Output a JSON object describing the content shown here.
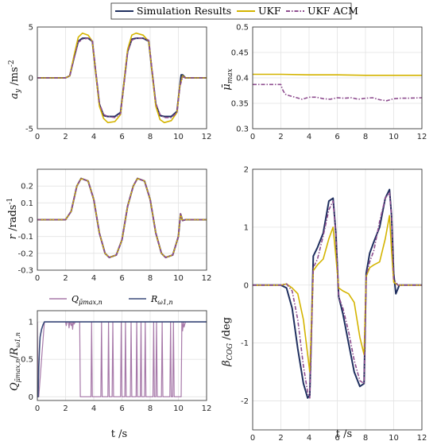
{
  "colors": {
    "sim": "#1f2f5f",
    "ukf": "#d4b400",
    "acm": "#8e4d8f",
    "q": "#a779a9",
    "r": "#3a4a7a",
    "grid": "#e3e3e3",
    "axis": "#262626"
  },
  "legend_top": [
    "Simulation Results",
    "UKF",
    "UKF ACM"
  ],
  "legend_bottom": [
    "Q_{μ̄max,n}",
    "R_{ω₁,n}"
  ],
  "chart_data": [
    {
      "type": "line",
      "id": "ay",
      "ylabel": "a_y /ms⁻²",
      "xlabel": "",
      "xlim": [
        0,
        12
      ],
      "ylim": [
        -5,
        5
      ],
      "xticks": [
        "0",
        "2",
        "4",
        "6",
        "8",
        "10",
        "12"
      ],
      "yticks": [
        "5",
        "0",
        "-5"
      ],
      "grid": true,
      "series": [
        {
          "name": "Simulation Results",
          "x": [
            0,
            2,
            2.3,
            2.6,
            2.9,
            3.2,
            3.6,
            3.9,
            4.1,
            4.4,
            4.7,
            5.0,
            5.5,
            5.9,
            6.1,
            6.4,
            6.7,
            7.0,
            7.5,
            7.9,
            8.1,
            8.4,
            8.7,
            9.0,
            9.5,
            9.9,
            10.1,
            10.2,
            10.3,
            10.5,
            12
          ],
          "y": [
            0,
            0,
            0.2,
            2.0,
            3.6,
            3.9,
            3.9,
            3.6,
            1.0,
            -2.6,
            -3.7,
            -3.8,
            -3.8,
            -3.4,
            -1.0,
            2.6,
            3.8,
            3.9,
            3.9,
            3.6,
            1.0,
            -2.6,
            -3.7,
            -3.8,
            -3.8,
            -3.3,
            -0.8,
            0.3,
            0.3,
            0,
            0
          ]
        },
        {
          "name": "UKF",
          "x": [
            0,
            2,
            2.3,
            2.6,
            2.9,
            3.2,
            3.6,
            3.9,
            4.1,
            4.4,
            4.7,
            5.0,
            5.5,
            5.9,
            6.1,
            6.4,
            6.7,
            7.0,
            7.5,
            7.9,
            8.1,
            8.4,
            8.7,
            9.0,
            9.5,
            9.9,
            10.1,
            10.3,
            10.5,
            12
          ],
          "y": [
            0,
            0,
            0.2,
            2.2,
            4.0,
            4.4,
            4.2,
            3.6,
            1.0,
            -2.8,
            -4.0,
            -4.4,
            -4.3,
            -3.6,
            -1.0,
            2.8,
            4.2,
            4.4,
            4.2,
            3.6,
            1.0,
            -2.8,
            -4.1,
            -4.4,
            -4.2,
            -3.4,
            -0.8,
            0.2,
            0,
            0
          ]
        },
        {
          "name": "UKF ACM",
          "x": [
            0,
            2,
            2.3,
            2.6,
            2.9,
            3.2,
            3.6,
            3.9,
            4.1,
            4.4,
            4.7,
            5.0,
            5.5,
            5.9,
            6.1,
            6.4,
            6.7,
            7.0,
            7.5,
            7.9,
            8.1,
            8.4,
            8.7,
            9.0,
            9.5,
            9.9,
            10.1,
            10.3,
            10.5,
            12
          ],
          "y": [
            0,
            0,
            0.2,
            1.9,
            3.5,
            3.8,
            3.9,
            3.7,
            1.2,
            -2.5,
            -3.6,
            -3.8,
            -3.9,
            -3.5,
            -1.2,
            2.5,
            3.7,
            3.9,
            3.9,
            3.7,
            1.2,
            -2.5,
            -3.6,
            -3.9,
            -3.9,
            -3.4,
            -0.9,
            0.1,
            0,
            0
          ]
        }
      ]
    },
    {
      "type": "line",
      "id": "mu",
      "ylabel": "μ̄_max",
      "xlabel": "",
      "xlim": [
        0,
        12
      ],
      "ylim": [
        0.3,
        0.5
      ],
      "xticks": [
        "0",
        "2",
        "4",
        "6",
        "8",
        "10",
        "12"
      ],
      "yticks": [
        "0.5",
        "0.45",
        "0.4",
        "0.35",
        "0.3"
      ],
      "grid": true,
      "series": [
        {
          "name": "UKF",
          "x": [
            0,
            2,
            4,
            6,
            8,
            9,
            10,
            12
          ],
          "y": [
            0.407,
            0.407,
            0.406,
            0.406,
            0.405,
            0.405,
            0.405,
            0.405
          ]
        },
        {
          "name": "UKF ACM",
          "x": [
            0,
            2,
            2.1,
            2.3,
            2.6,
            3.0,
            3.5,
            4.0,
            4.5,
            5.0,
            5.5,
            6.0,
            6.5,
            7.0,
            7.5,
            8.0,
            8.5,
            9.0,
            9.5,
            10.0,
            10.5,
            11.0,
            12
          ],
          "y": [
            0.387,
            0.387,
            0.378,
            0.368,
            0.365,
            0.362,
            0.358,
            0.362,
            0.362,
            0.359,
            0.358,
            0.361,
            0.36,
            0.361,
            0.358,
            0.36,
            0.361,
            0.357,
            0.355,
            0.359,
            0.36,
            0.36,
            0.361
          ]
        }
      ]
    },
    {
      "type": "line",
      "id": "r",
      "ylabel": "r /rads⁻¹",
      "xlabel": "",
      "xlim": [
        0,
        12
      ],
      "ylim": [
        -0.3,
        0.3
      ],
      "xticks": [
        "0",
        "2",
        "4",
        "6",
        "8",
        "10",
        "12"
      ],
      "yticks": [
        "0.2",
        "0.1",
        "0",
        "-0.1",
        "-0.2",
        "-0.3"
      ],
      "grid": true,
      "series": [
        {
          "name": "Simulation Results",
          "x": [
            0,
            2,
            2.4,
            2.8,
            3.1,
            3.6,
            4.0,
            4.4,
            4.8,
            5.1,
            5.6,
            6.0,
            6.4,
            6.8,
            7.1,
            7.6,
            8.0,
            8.4,
            8.8,
            9.1,
            9.6,
            10.0,
            10.15,
            10.3,
            10.5,
            12
          ],
          "y": [
            0,
            0,
            0.05,
            0.2,
            0.245,
            0.23,
            0.12,
            -0.08,
            -0.2,
            -0.225,
            -0.21,
            -0.12,
            0.08,
            0.2,
            0.245,
            0.23,
            0.12,
            -0.08,
            -0.2,
            -0.225,
            -0.21,
            -0.1,
            0.035,
            -0.005,
            0,
            0
          ]
        },
        {
          "name": "UKF",
          "x": [
            0,
            2,
            2.4,
            2.8,
            3.1,
            3.6,
            4.0,
            4.4,
            4.8,
            5.1,
            5.6,
            6.0,
            6.4,
            6.8,
            7.1,
            7.6,
            8.0,
            8.4,
            8.8,
            9.1,
            9.6,
            10.0,
            10.15,
            10.3,
            10.5,
            12
          ],
          "y": [
            0,
            0,
            0.05,
            0.2,
            0.245,
            0.23,
            0.12,
            -0.08,
            -0.2,
            -0.225,
            -0.21,
            -0.12,
            0.08,
            0.2,
            0.245,
            0.23,
            0.12,
            -0.08,
            -0.2,
            -0.225,
            -0.21,
            -0.1,
            0.035,
            -0.005,
            0,
            0
          ]
        },
        {
          "name": "UKF ACM",
          "x": [
            0,
            2,
            2.4,
            2.8,
            3.1,
            3.6,
            4.0,
            4.4,
            4.8,
            5.1,
            5.6,
            6.0,
            6.4,
            6.8,
            7.1,
            7.6,
            8.0,
            8.4,
            8.8,
            9.1,
            9.6,
            10.0,
            10.15,
            10.3,
            10.5,
            12
          ],
          "y": [
            0,
            0,
            0.05,
            0.2,
            0.245,
            0.23,
            0.12,
            -0.08,
            -0.2,
            -0.225,
            -0.21,
            -0.12,
            0.08,
            0.2,
            0.245,
            0.23,
            0.12,
            -0.08,
            -0.2,
            -0.225,
            -0.21,
            -0.1,
            0.035,
            -0.005,
            0,
            0
          ]
        }
      ]
    },
    {
      "type": "line",
      "id": "beta",
      "ylabel": "β_COG /deg",
      "xlabel": "t /s",
      "xlim": [
        0,
        12
      ],
      "ylim": [
        -2.5,
        2
      ],
      "xticks": [
        "0",
        "2",
        "4",
        "6",
        "8",
        "10",
        "12"
      ],
      "yticks": [
        "2",
        "1",
        "0",
        "-1",
        "-2"
      ],
      "grid": true,
      "series": [
        {
          "name": "Simulation Results",
          "x": [
            0,
            2,
            2.4,
            2.8,
            3.2,
            3.6,
            3.9,
            4.05,
            4.3,
            4.6,
            5.0,
            5.4,
            5.7,
            5.9,
            6.1,
            6.4,
            6.8,
            7.2,
            7.6,
            7.9,
            8.05,
            8.3,
            8.6,
            9.0,
            9.4,
            9.7,
            9.85,
            10.0,
            10.15,
            10.4,
            12
          ],
          "y": [
            0,
            0,
            -0.05,
            -0.4,
            -1.1,
            -1.7,
            -1.95,
            -1.9,
            0.5,
            0.65,
            0.9,
            1.45,
            1.5,
            0.9,
            -0.2,
            -0.5,
            -1.0,
            -1.5,
            -1.75,
            -1.7,
            0.2,
            0.55,
            0.75,
            1.0,
            1.5,
            1.65,
            1.2,
            0.2,
            -0.15,
            0,
            0
          ]
        },
        {
          "name": "UKF",
          "x": [
            0,
            2,
            2.4,
            2.8,
            3.2,
            3.6,
            3.9,
            4.05,
            4.3,
            4.6,
            5.0,
            5.4,
            5.7,
            5.9,
            6.1,
            6.4,
            6.8,
            7.2,
            7.6,
            7.9,
            8.05,
            8.3,
            8.6,
            9.0,
            9.4,
            9.7,
            9.85,
            10.0,
            10.3,
            12
          ],
          "y": [
            0,
            0,
            0.02,
            -0.05,
            -0.15,
            -0.6,
            -1.2,
            -1.5,
            0.25,
            0.35,
            0.45,
            0.8,
            1.0,
            0.5,
            -0.05,
            -0.1,
            -0.15,
            -0.3,
            -0.9,
            -1.2,
            0.15,
            0.3,
            0.35,
            0.4,
            0.8,
            1.2,
            0.6,
            0.05,
            0,
            0
          ]
        },
        {
          "name": "UKF ACM",
          "x": [
            0,
            2,
            2.4,
            2.8,
            3.2,
            3.6,
            3.9,
            4.05,
            4.3,
            4.6,
            5.0,
            5.4,
            5.7,
            5.9,
            6.1,
            6.4,
            6.8,
            7.2,
            7.6,
            7.9,
            8.05,
            8.3,
            8.6,
            9.0,
            9.4,
            9.7,
            9.85,
            10.0,
            10.3,
            12
          ],
          "y": [
            0,
            0,
            0.02,
            -0.1,
            -0.6,
            -1.4,
            -1.85,
            -1.95,
            0.3,
            0.45,
            0.85,
            1.3,
            1.45,
            0.9,
            -0.2,
            -0.4,
            -0.8,
            -1.3,
            -1.65,
            -1.7,
            0.15,
            0.4,
            0.6,
            1.1,
            1.5,
            1.6,
            1.2,
            0.1,
            0,
            0
          ]
        }
      ]
    },
    {
      "type": "line",
      "id": "qr",
      "ylabel": "Q_{μ̄max,n}/R_{ω₁,n}",
      "xlabel": "t /s",
      "xlim": [
        0,
        12
      ],
      "ylim": [
        -0.05,
        1.15
      ],
      "xticks": [
        "0",
        "2",
        "4",
        "6",
        "8",
        "10",
        "12"
      ],
      "yticks": [
        "1",
        "0.5",
        "0"
      ],
      "grid": true,
      "series": [
        {
          "name": "Q_{μ̄max,n}",
          "x": [
            0,
            0.05,
            0.1,
            0.3,
            0.5,
            2,
            2.05,
            2.1,
            2.2,
            2.25,
            2.3,
            2.4,
            2.45,
            2.5,
            2.55,
            2.6,
            2.7,
            3.0,
            3.05,
            3.1,
            3.8,
            3.85,
            3.9,
            4.5,
            4.55,
            4.6,
            5.0,
            5.05,
            5.1,
            5.3,
            5.35,
            5.4,
            5.9,
            5.95,
            6.0,
            6.2,
            6.25,
            6.3,
            6.6,
            6.65,
            6.7,
            7.0,
            7.05,
            7.1,
            7.3,
            7.35,
            7.4,
            7.6,
            7.65,
            7.7,
            8.2,
            8.25,
            8.3,
            8.4,
            8.45,
            8.5,
            8.8,
            8.85,
            8.9,
            9.4,
            9.45,
            9.5,
            9.6,
            9.65,
            9.7,
            10.2,
            10.25,
            10.3,
            10.35,
            10.4,
            10.5,
            12
          ],
          "y": [
            1,
            0.05,
            0,
            0.5,
            1,
            1,
            0.95,
            1,
            1,
            0.92,
            1,
            0.95,
            1,
            0.9,
            1,
            0.97,
            1,
            1,
            0,
            0,
            0,
            1,
            0,
            0,
            1,
            0,
            0,
            1,
            0,
            0,
            1,
            0,
            0,
            1,
            0,
            0,
            1,
            0,
            0,
            1,
            0,
            0,
            1,
            0,
            0,
            1,
            0,
            0,
            1,
            0,
            0,
            1,
            0,
            0,
            1,
            0,
            0,
            1,
            0,
            0,
            1,
            0,
            0,
            1,
            0,
            0,
            1,
            0.88,
            1,
            0.93,
            1,
            1
          ]
        },
        {
          "name": "R_{ω₁,n}",
          "x": [
            0,
            0.05,
            0.1,
            0.15,
            0.2,
            0.3,
            0.4,
            0.5,
            1,
            12
          ],
          "y": [
            0,
            0,
            0.4,
            0.65,
            0.8,
            0.9,
            0.96,
            1,
            1,
            1
          ]
        }
      ]
    }
  ]
}
